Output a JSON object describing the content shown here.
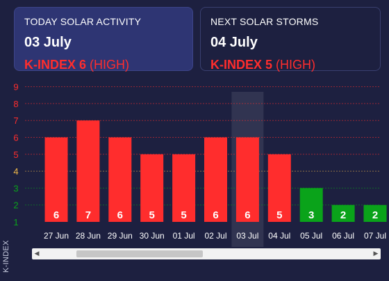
{
  "today": {
    "title": "TODAY SOLAR ACTIVITY",
    "date": "03 July",
    "k_label": "K-INDEX 6",
    "level": "(HIGH)"
  },
  "next": {
    "title": "NEXT SOLAR STORMS",
    "date": "04 July",
    "k_label": "K-INDEX 5",
    "level": "(HIGH)"
  },
  "colors": {
    "high": "#ff2d2d",
    "moderate": "#f0b94a",
    "low": "#0aa31a",
    "background": "#1d2040",
    "highlight_card": "#2e3573"
  },
  "chart_data": {
    "type": "bar",
    "categories": [
      "27 Jun",
      "28 Jun",
      "29 Jun",
      "30 Jun",
      "01 Jul",
      "02 Jul",
      "03 Jul",
      "04 Jul",
      "05 Jul",
      "06 Jul",
      "07 Jul"
    ],
    "values": [
      6,
      7,
      6,
      5,
      5,
      6,
      6,
      5,
      3,
      2,
      2
    ],
    "ylim": [
      1,
      9
    ],
    "yticks": [
      1,
      2,
      3,
      4,
      5,
      6,
      7,
      8,
      9
    ],
    "ylabel": "K-INDEX",
    "xlabel": "",
    "highlighted_category": "03 Jul",
    "grid": true
  },
  "scrollbar": {
    "left_arrow": "◀",
    "right_arrow": "▶"
  }
}
